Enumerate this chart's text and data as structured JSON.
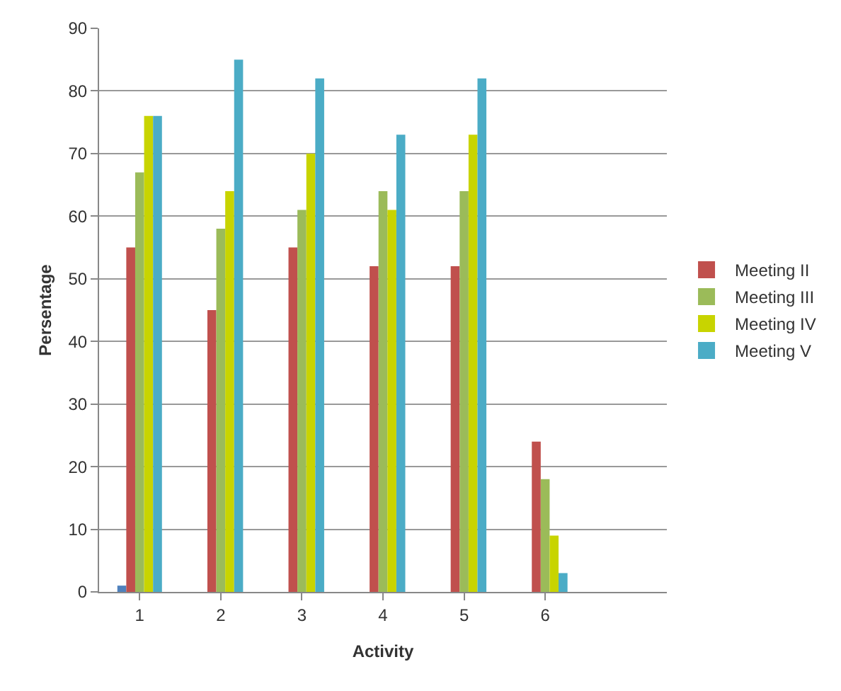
{
  "chart_data": {
    "type": "bar",
    "xlabel": "Activity",
    "ylabel": "Persentage",
    "categories": [
      "1",
      "2",
      "3",
      "4",
      "5",
      "6",
      null
    ],
    "series": [
      {
        "color": "#4f81bd",
        "values": [
          1,
          null,
          null,
          null,
          null,
          null,
          null
        ]
      },
      {
        "name": "Meeting II",
        "color": "#c0504d",
        "values": [
          55,
          45,
          55,
          52,
          52,
          24,
          null
        ]
      },
      {
        "name": "Meeting III",
        "color": "#9bbb59",
        "values": [
          67,
          58,
          61,
          64,
          64,
          18,
          null
        ]
      },
      {
        "name": "Meeting IV",
        "color": "#c8d400",
        "values": [
          76,
          64,
          70,
          61,
          73,
          9,
          null
        ]
      },
      {
        "name": "Meeting V",
        "color": "#4bacc6",
        "values": [
          76,
          85,
          82,
          73,
          82,
          3,
          null
        ]
      }
    ],
    "ylim": [
      0,
      90
    ],
    "yticks": [
      0,
      10,
      20,
      30,
      40,
      50,
      60,
      70,
      80,
      90
    ],
    "grid": "y",
    "legend": "right"
  }
}
